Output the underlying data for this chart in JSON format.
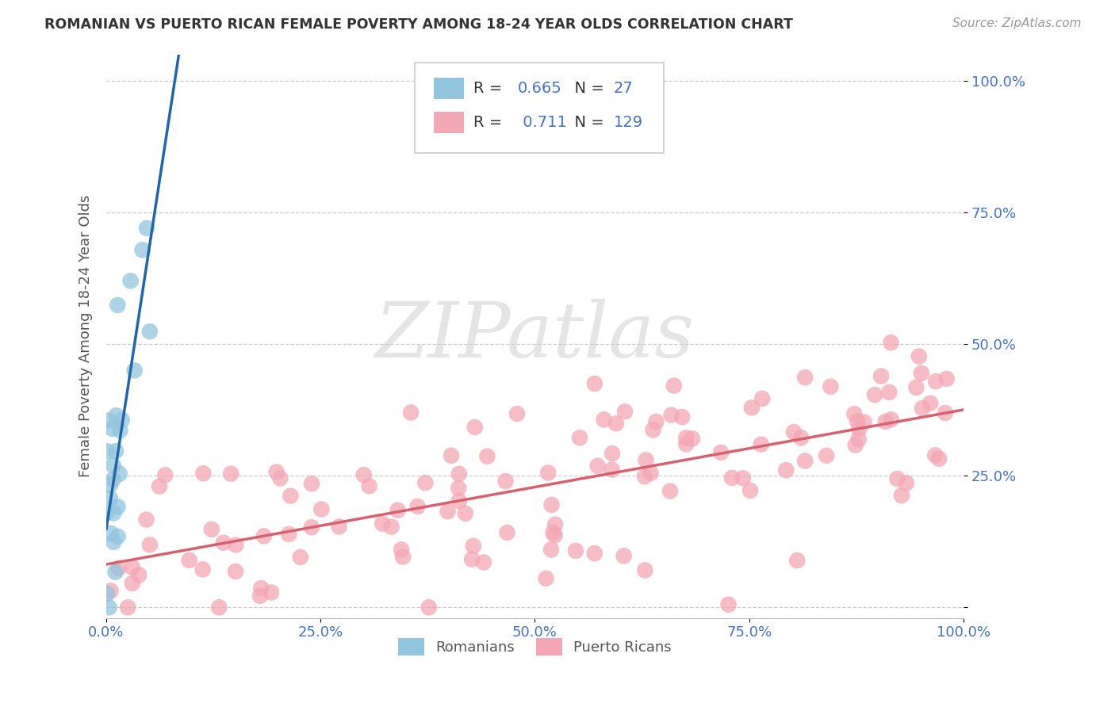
{
  "title": "ROMANIAN VS PUERTO RICAN FEMALE POVERTY AMONG 18-24 YEAR OLDS CORRELATION CHART",
  "source": "Source: ZipAtlas.com",
  "ylabel": "Female Poverty Among 18-24 Year Olds",
  "xlim": [
    0,
    1
  ],
  "ylim": [
    -0.02,
    1.05
  ],
  "xticks": [
    0,
    0.25,
    0.5,
    0.75,
    1.0
  ],
  "yticks": [
    0,
    0.25,
    0.5,
    0.75,
    1.0
  ],
  "xticklabels": [
    "0.0%",
    "25.0%",
    "50.0%",
    "75.0%",
    "100.0%"
  ],
  "yticklabels": [
    "",
    "25.0%",
    "50.0%",
    "75.0%",
    "100.0%"
  ],
  "romanian_R": 0.665,
  "romanian_N": 27,
  "puerto_rican_R": 0.711,
  "puerto_rican_N": 129,
  "romanian_color": "#92c5de",
  "puerto_rican_color": "#f4a7b5",
  "romanian_line_color": "#2166ac",
  "puerto_rican_line_color": "#d9606e",
  "watermark_color": "#d0d0d0",
  "watermark_text": "ZIPatlas",
  "background_color": "#ffffff",
  "grid_color": "#cccccc",
  "title_color": "#333333",
  "axis_label_color": "#555555",
  "tick_label_color": "#4472c4",
  "legend_r_n_color": "#4472c4",
  "legend_label_color": "#555555",
  "legend_r_color": "#000000",
  "legend_n_color": "#4472c4"
}
